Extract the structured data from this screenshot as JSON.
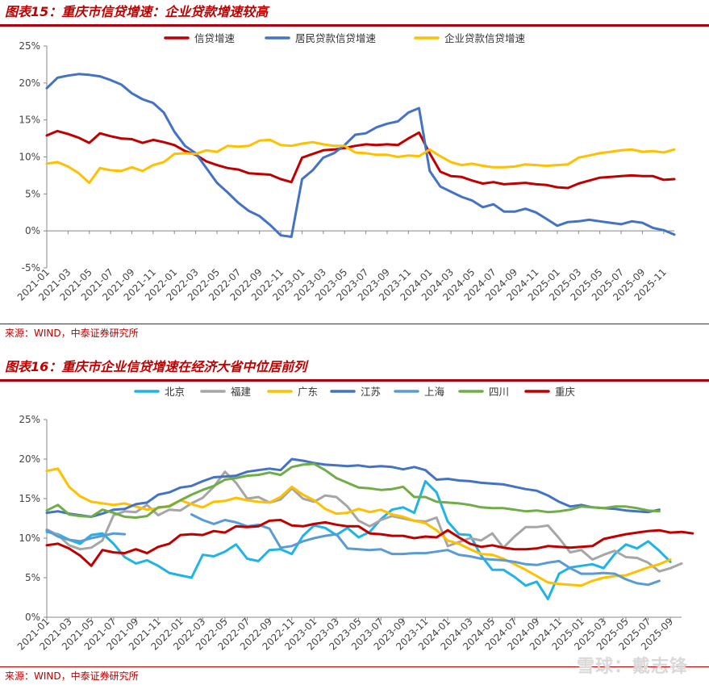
{
  "figures": [
    {
      "title": "图表15：重庆市信贷增速：企业贷款增速较高",
      "source": "来源：WIND，中泰证券研究所"
    },
    {
      "title": "图表16：重庆市企业信贷增速在经济大省中位居前列",
      "source": "来源：WIND，中泰证券研究所"
    }
  ],
  "watermark": "雪球：戴志锋",
  "chart_data": [
    {
      "type": "line",
      "title": "",
      "xlabel": "",
      "ylabel": "",
      "ylim": [
        -5,
        25
      ],
      "yticks": [
        -5,
        0,
        5,
        10,
        15,
        20,
        25
      ],
      "ytick_labels": [
        "-5%",
        "0%",
        "5%",
        "10%",
        "15%",
        "20%",
        "25%"
      ],
      "x_start": "2021-01",
      "x_end": "2025-12",
      "x_tick_labels": [
        "2021-01",
        "2021-03",
        "2021-05",
        "2021-07",
        "2021-09",
        "2021-11",
        "2022-01",
        "2022-03",
        "2022-05",
        "2022-07",
        "2022-09",
        "2022-11",
        "2023-01",
        "2023-03",
        "2023-05",
        "2023-07",
        "2023-09",
        "2023-11",
        "2024-01",
        "2024-03",
        "2024-05",
        "2024-07",
        "2024-09",
        "2024-11",
        "2025-01",
        "2025-03",
        "2025-05",
        "2025-07",
        "2025-09",
        "2025-11"
      ],
      "grid": false,
      "legend": "top",
      "series": [
        {
          "name": "信贷增速",
          "color": "#c00000",
          "values": [
            12.9,
            13.5,
            13.1,
            12.6,
            11.9,
            13.2,
            12.8,
            12.5,
            12.4,
            11.9,
            12.3,
            12.0,
            11.6,
            10.8,
            10.3,
            9.4,
            8.9,
            8.5,
            8.3,
            7.8,
            7.7,
            7.6,
            7.0,
            6.6,
            9.9,
            10.4,
            10.9,
            11.0,
            11.2,
            11.5,
            11.7,
            11.6,
            11.7,
            11.6,
            12.5,
            13.3,
            10.5,
            8.0,
            7.4,
            7.3,
            6.8,
            6.4,
            6.6,
            6.3,
            6.4,
            6.5,
            6.3,
            6.2,
            5.9,
            5.8,
            6.4,
            6.8,
            7.2,
            7.3,
            7.4,
            7.5,
            7.4,
            7.4,
            6.9,
            7.0
          ]
        },
        {
          "name": "居民贷款信贷增速",
          "color": "#4472c4",
          "values": [
            19.3,
            20.7,
            21.0,
            21.2,
            21.1,
            20.9,
            20.4,
            19.8,
            18.6,
            17.8,
            17.3,
            16.0,
            13.4,
            11.5,
            10.5,
            8.5,
            6.5,
            5.2,
            3.8,
            2.7,
            2.0,
            0.8,
            -0.6,
            -0.8,
            7.0,
            8.2,
            9.9,
            10.5,
            11.6,
            13.0,
            13.2,
            14.0,
            14.5,
            14.8,
            16.0,
            16.6,
            8.1,
            6.0,
            5.3,
            4.6,
            4.1,
            3.2,
            3.6,
            2.6,
            2.6,
            3.0,
            2.5,
            1.6,
            0.7,
            1.2,
            1.3,
            1.5,
            1.3,
            1.1,
            0.9,
            1.3,
            1.1,
            0.4,
            0.1,
            -0.5
          ]
        },
        {
          "name": "企业贷款信贷增速",
          "color": "#ffc000",
          "values": [
            9.1,
            9.3,
            8.7,
            7.8,
            6.5,
            8.5,
            8.2,
            8.1,
            8.6,
            8.1,
            8.9,
            9.3,
            10.4,
            10.5,
            10.4,
            10.9,
            10.7,
            11.5,
            11.4,
            11.5,
            12.2,
            12.3,
            11.6,
            11.5,
            11.8,
            12.0,
            11.7,
            11.5,
            11.5,
            10.6,
            10.5,
            10.3,
            10.3,
            10.0,
            10.2,
            10.1,
            11.0,
            10.1,
            9.3,
            8.9,
            9.1,
            8.8,
            8.6,
            8.6,
            8.7,
            9.0,
            8.9,
            8.8,
            8.9,
            9.0,
            9.9,
            10.2,
            10.5,
            10.7,
            10.9,
            11.0,
            10.7,
            10.8,
            10.6,
            11.0
          ]
        }
      ]
    },
    {
      "type": "line",
      "title": "",
      "xlabel": "",
      "ylabel": "",
      "ylim": [
        0,
        25
      ],
      "yticks": [
        0,
        5,
        10,
        15,
        20,
        25
      ],
      "ytick_labels": [
        "0%",
        "5%",
        "10%",
        "15%",
        "20%",
        "25%"
      ],
      "x_start": "2021-01",
      "x_end": "2025-10",
      "x_tick_labels": [
        "2021-01",
        "2021-03",
        "2021-05",
        "2021-07",
        "2021-09",
        "2021-11",
        "2022-01",
        "2022-03",
        "2022-05",
        "2022-07",
        "2022-09",
        "2022-11",
        "2023-01",
        "2023-03",
        "2023-05",
        "2023-07",
        "2023-09",
        "2023-11",
        "2024-01",
        "2024-03",
        "2024-05",
        "2024-07",
        "2024-09",
        "2024-11",
        "2025-01",
        "2025-03",
        "2025-05",
        "2025-07",
        "2025-09"
      ],
      "grid": false,
      "legend": "top",
      "series": [
        {
          "name": "北京",
          "color": "#1fb4e8",
          "values": [
            10.8,
            10.5,
            9.8,
            9.3,
            10.4,
            10.6,
            9.3,
            7.6,
            6.8,
            7.2,
            6.5,
            5.6,
            5.3,
            5.0,
            7.9,
            7.7,
            8.3,
            9.2,
            7.4,
            7.1,
            8.5,
            8.6,
            8.0,
            10.3,
            11.6,
            11.3,
            10.4,
            11.3,
            10.1,
            10.8,
            12.4,
            13.6,
            13.9,
            13.2,
            17.2,
            15.8,
            12.1,
            10.5,
            10.4,
            7.8,
            6.0,
            6.0,
            5.1,
            4.0,
            4.5,
            2.3,
            5.5,
            6.3,
            6.5,
            6.7,
            6.2,
            8.0,
            9.2,
            8.7,
            9.6,
            8.4,
            7.0
          ]
        },
        {
          "name": "福建",
          "color": "#a6a6a6",
          "values": [
            11.1,
            10.4,
            9.1,
            8.6,
            8.8,
            9.7,
            12.9,
            13.4,
            13.3,
            14.2,
            12.9,
            13.6,
            13.5,
            14.4,
            15.1,
            16.5,
            18.4,
            17.0,
            15.0,
            15.2,
            14.5,
            14.9,
            16.3,
            15.0,
            14.6,
            15.4,
            15.2,
            14.0,
            12.2,
            11.5,
            12.3,
            12.8,
            12.5,
            12.2,
            12.1,
            12.6,
            9.0,
            9.5,
            10.0,
            9.7,
            10.6,
            8.8,
            10.2,
            11.4,
            11.4,
            11.6,
            10.0,
            8.2,
            8.5,
            7.3,
            7.9,
            8.4,
            7.6,
            7.5,
            6.9,
            5.8,
            6.2,
            6.8
          ]
        },
        {
          "name": "广东",
          "color": "#ffc000",
          "values": [
            18.5,
            18.8,
            16.5,
            15.3,
            14.6,
            14.4,
            14.2,
            14.4,
            14.0,
            13.6,
            13.8,
            14.1,
            14.8,
            14.3,
            13.9,
            14.6,
            14.7,
            15.1,
            14.8,
            14.6,
            14.5,
            15.2,
            16.5,
            15.5,
            14.8,
            13.7,
            13.1,
            13.2,
            13.7,
            13.3,
            13.6,
            13.0,
            12.7,
            12.2,
            11.9,
            11.0,
            9.7,
            9.3,
            8.6,
            8.0,
            7.9,
            7.4,
            6.7,
            6.0,
            5.2,
            4.4,
            4.2,
            4.1,
            4.0,
            4.6,
            5.0,
            5.2,
            5.3,
            5.8,
            6.3,
            6.7,
            7.3
          ]
        },
        {
          "name": "江苏",
          "color": "#4472c4",
          "values": [
            13.2,
            13.4,
            13.1,
            12.9,
            12.7,
            13.1,
            13.6,
            13.7,
            14.3,
            14.5,
            15.5,
            15.8,
            16.4,
            16.6,
            17.2,
            17.7,
            17.8,
            17.9,
            18.4,
            18.6,
            18.8,
            18.6,
            20.0,
            19.8,
            19.5,
            19.3,
            19.2,
            19.1,
            19.2,
            19.0,
            19.1,
            19.0,
            18.7,
            19.0,
            18.6,
            17.4,
            17.5,
            17.3,
            17.2,
            17.0,
            16.9,
            16.8,
            16.5,
            16.2,
            16.0,
            15.4,
            14.6,
            14.0,
            14.2,
            13.9,
            13.8,
            13.7,
            13.5,
            13.4,
            13.3,
            13.6
          ]
        },
        {
          "name": "上海",
          "color": "#5b9bd5",
          "values": [
            11.0,
            10.2,
            9.8,
            9.6,
            10.0,
            10.3,
            10.6,
            10.5,
            null,
            null,
            null,
            null,
            null,
            13.0,
            12.3,
            11.8,
            12.3,
            12.0,
            11.5,
            11.7,
            11.2,
            8.8,
            9.0,
            9.6,
            10.0,
            10.3,
            10.5,
            8.7,
            8.6,
            8.5,
            8.6,
            8.0,
            8.0,
            8.1,
            8.1,
            8.3,
            8.5,
            7.9,
            7.7,
            7.4,
            7.3,
            7.2,
            7.0,
            6.7,
            6.6,
            6.9,
            7.1,
            6.2,
            5.5,
            5.5,
            5.6,
            5.5,
            4.8,
            4.3,
            4.1,
            4.6
          ]
        },
        {
          "name": "四川",
          "color": "#70ad47",
          "values": [
            13.5,
            14.2,
            13.0,
            12.8,
            12.7,
            13.6,
            13.2,
            12.7,
            12.6,
            12.8,
            13.9,
            14.0,
            14.8,
            15.5,
            16.1,
            16.6,
            17.4,
            17.6,
            17.9,
            18.0,
            18.3,
            18.0,
            19.0,
            19.3,
            19.4,
            18.6,
            17.6,
            17.0,
            16.4,
            16.3,
            16.1,
            16.2,
            16.5,
            15.2,
            15.2,
            14.6,
            14.5,
            14.4,
            14.2,
            13.9,
            13.8,
            13.8,
            13.6,
            13.4,
            13.5,
            13.3,
            13.4,
            13.6,
            14.0,
            13.9,
            13.8,
            14.0,
            14.0,
            13.8,
            13.5,
            13.4
          ]
        },
        {
          "name": "重庆",
          "color": "#c00000",
          "values": [
            9.1,
            9.3,
            8.7,
            7.8,
            6.5,
            8.5,
            8.2,
            8.1,
            8.6,
            8.1,
            8.9,
            9.3,
            10.4,
            10.5,
            10.4,
            10.9,
            10.7,
            11.5,
            11.4,
            11.5,
            12.2,
            12.3,
            11.6,
            11.5,
            11.8,
            12.0,
            11.7,
            11.5,
            11.5,
            10.6,
            10.5,
            10.3,
            10.3,
            10.0,
            10.2,
            10.1,
            11.0,
            10.1,
            9.3,
            8.9,
            9.1,
            8.8,
            8.6,
            8.6,
            8.7,
            9.0,
            8.9,
            8.8,
            8.9,
            9.0,
            9.9,
            10.2,
            10.5,
            10.7,
            10.9,
            11.0,
            10.7,
            10.8,
            10.6
          ]
        }
      ]
    }
  ]
}
